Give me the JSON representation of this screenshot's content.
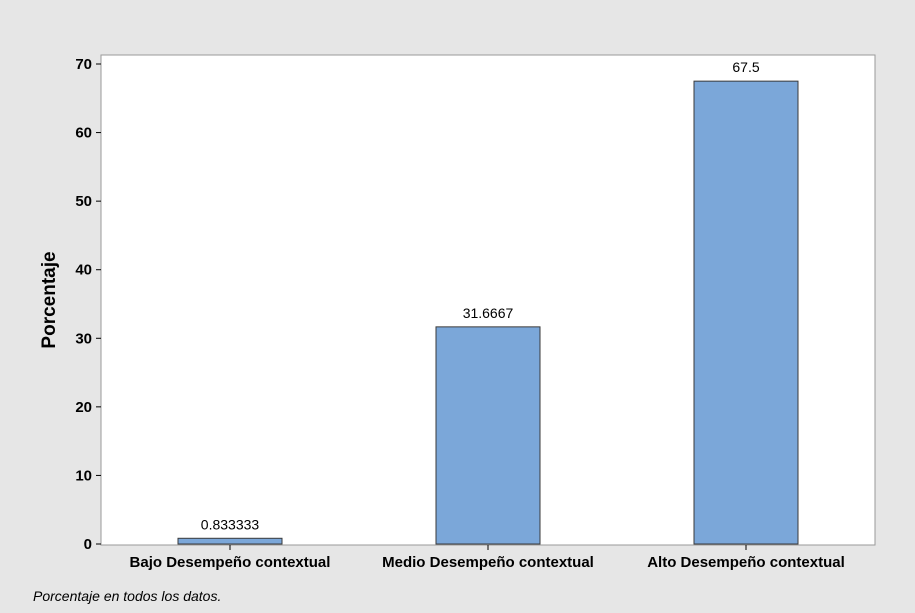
{
  "chart_data": {
    "type": "bar",
    "categories": [
      "Bajo Desempeño contextual",
      "Medio Desempeño contextual",
      "Alto Desempeño contextual"
    ],
    "values": [
      0.833333,
      31.6667,
      67.5
    ],
    "data_labels": [
      "0.833333",
      "31.6667",
      "67.5"
    ],
    "title": "",
    "xlabel": "",
    "ylabel": "Porcentaje",
    "ylim": [
      0,
      70
    ],
    "yticks": [
      "0",
      "10",
      "20",
      "30",
      "40",
      "50",
      "60",
      "70"
    ],
    "grid": false,
    "legend": "none",
    "bar_color": "#7ba7d9",
    "bar_edge_color": "#3a3a3a",
    "plot_background": "#ffffff",
    "figure_background": "#e6e6e6"
  },
  "footnote": "Porcentaje en todos los datos."
}
